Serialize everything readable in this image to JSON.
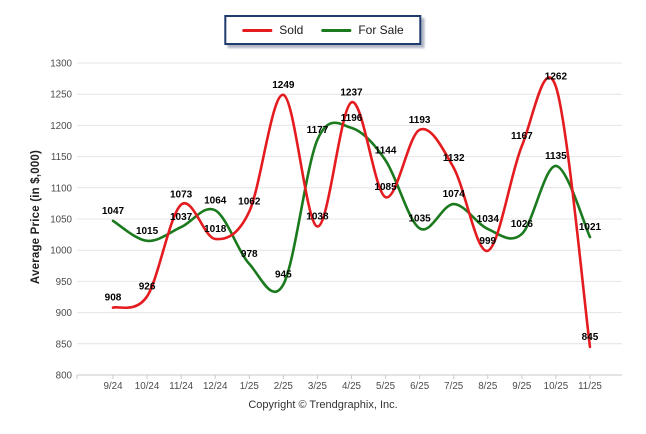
{
  "legend": {
    "items": [
      {
        "label": "Sold",
        "color": "#e41b1f"
      },
      {
        "label": "For Sale",
        "color": "#1b7a1e"
      }
    ]
  },
  "chart_data": {
    "type": "line",
    "title": "",
    "categories": [
      "9/24",
      "10/24",
      "11/24",
      "12/24",
      "1/25",
      "2/25",
      "3/25",
      "4/25",
      "5/25",
      "6/25",
      "7/25",
      "8/25",
      "9/25",
      "10/25",
      "11/25"
    ],
    "series": [
      {
        "name": "Sold",
        "color": "#e41b1f",
        "values": [
          908,
          926,
          1073,
          1018,
          1062,
          1249,
          1038,
          1237,
          1085,
          1193,
          1132,
          999,
          1167,
          1262,
          845
        ]
      },
      {
        "name": "For Sale",
        "color": "#1b7a1e",
        "values": [
          1047,
          1015,
          1037,
          1064,
          978,
          945,
          1177,
          1196,
          1144,
          1035,
          1074,
          1034,
          1026,
          1135,
          1021
        ]
      }
    ],
    "xlabel": "",
    "ylabel": "Average Price (in $,000)",
    "ylim": [
      800,
      1300
    ],
    "ytick_step": 50,
    "grid": true,
    "smooth": true,
    "legend_position": "top-center",
    "data_labels": true
  },
  "footer": {
    "copyright": "Copyright © Trendgraphix, Inc."
  },
  "colors": {
    "grid": "#e4e4e4",
    "axis": "#c8c8c8",
    "tick_text": "#4b4b4b",
    "data_label_text": "#000000",
    "legend_border": "#1f3a6e",
    "background": "#ffffff"
  }
}
